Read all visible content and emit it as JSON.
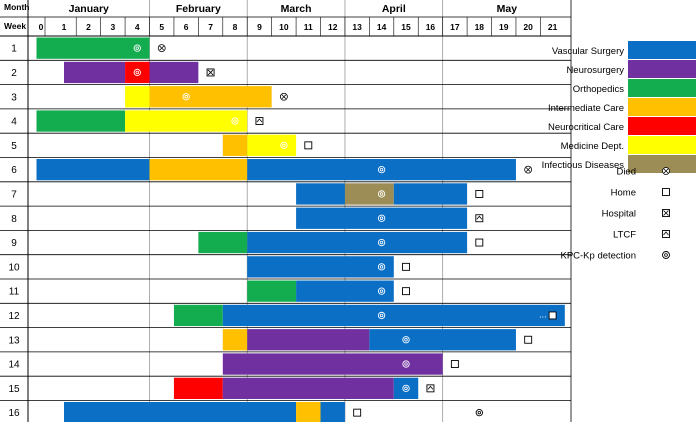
{
  "chart_data": {
    "type": "timeline",
    "header": {
      "month_label": "Month",
      "week_label": "Week"
    },
    "months": [
      {
        "name": "January",
        "first_week": 0,
        "last_week": 4
      },
      {
        "name": "February",
        "first_week": 5,
        "last_week": 8
      },
      {
        "name": "March",
        "first_week": 9,
        "last_week": 12
      },
      {
        "name": "April",
        "first_week": 13,
        "last_week": 16
      },
      {
        "name": "May",
        "first_week": 17,
        "last_week": 21
      }
    ],
    "weeks": [
      "0",
      "1",
      "2",
      "3",
      "4",
      "5",
      "6",
      "7",
      "8",
      "9",
      "10",
      "11",
      "12",
      "13",
      "14",
      "15",
      "16",
      "17",
      "18",
      "19",
      "20",
      "21"
    ],
    "categories": [
      {
        "name": "Vascular Surgery",
        "color": "#0b6fc6"
      },
      {
        "name": "Neurosurgery",
        "color": "#7030a0"
      },
      {
        "name": "Orthopedics",
        "color": "#13ad4f"
      },
      {
        "name": "Intermediate Care",
        "color": "#ffc000"
      },
      {
        "name": "Neurocritical Care",
        "color": "#ff0000"
      },
      {
        "name": "Medicine Dept.",
        "color": "#ffff00"
      },
      {
        "name": "Infectious Diseases",
        "color": "#9c8c55"
      }
    ],
    "outcome_legend": [
      {
        "key": "died",
        "label": "Died",
        "glyph": "⊗"
      },
      {
        "key": "home",
        "label": "Home",
        "glyph": "☐"
      },
      {
        "key": "hospital",
        "label": "Hospital",
        "glyph": "⊠"
      },
      {
        "key": "ltcf",
        "label": "LTCF",
        "glyph": "⌂"
      },
      {
        "key": "kpc",
        "label": "KPC-Kp detection",
        "glyph": "◎"
      }
    ],
    "patients": [
      {
        "id": "1",
        "stays": [
          {
            "ward": "Orthopedics",
            "start": 0,
            "end": 4.5
          }
        ],
        "kpc_week": 4,
        "outcome": {
          "type": "died",
          "week": 5
        }
      },
      {
        "id": "2",
        "stays": [
          {
            "ward": "Neurosurgery",
            "start": 1,
            "end": 3.5
          },
          {
            "ward": "Neurocritical Care",
            "start": 3.5,
            "end": 4.5
          },
          {
            "ward": "Neurosurgery",
            "start": 4.5,
            "end": 6.5
          }
        ],
        "kpc_week": 4,
        "outcome": {
          "type": "hospital",
          "week": 7
        }
      },
      {
        "id": "3",
        "stays": [
          {
            "ward": "Medicine Dept.",
            "start": 3.5,
            "end": 4.5
          },
          {
            "ward": "Intermediate Care",
            "start": 4.5,
            "end": 9.5
          }
        ],
        "kpc_week": 6,
        "outcome": {
          "type": "died",
          "week": 10
        }
      },
      {
        "id": "4",
        "stays": [
          {
            "ward": "Orthopedics",
            "start": 0,
            "end": 3.5
          },
          {
            "ward": "Medicine Dept.",
            "start": 3.5,
            "end": 8.5
          }
        ],
        "kpc_week": 8,
        "outcome": {
          "type": "ltcf",
          "week": 9
        }
      },
      {
        "id": "5",
        "stays": [
          {
            "ward": "Intermediate Care",
            "start": 7.5,
            "end": 8.5
          },
          {
            "ward": "Medicine Dept.",
            "start": 8.5,
            "end": 10.5
          }
        ],
        "kpc_week": 10,
        "outcome": {
          "type": "home",
          "week": 11
        }
      },
      {
        "id": "6",
        "stays": [
          {
            "ward": "Vascular Surgery",
            "start": 0,
            "end": 4.5
          },
          {
            "ward": "Intermediate Care",
            "start": 4.5,
            "end": 8.5
          },
          {
            "ward": "Vascular Surgery",
            "start": 8.5,
            "end": 19.5
          }
        ],
        "kpc_week": 14,
        "outcome": {
          "type": "died",
          "week": 20
        }
      },
      {
        "id": "7",
        "stays": [
          {
            "ward": "Vascular Surgery",
            "start": 10.5,
            "end": 12.5
          },
          {
            "ward": "Infectious Diseases",
            "start": 12.5,
            "end": 14.5
          },
          {
            "ward": "Vascular Surgery",
            "start": 14.5,
            "end": 17.5
          }
        ],
        "kpc_week": 14,
        "outcome": {
          "type": "home",
          "week": 18
        }
      },
      {
        "id": "8",
        "stays": [
          {
            "ward": "Vascular Surgery",
            "start": 10.5,
            "end": 17.5
          }
        ],
        "kpc_week": 14,
        "outcome": {
          "type": "ltcf",
          "week": 18
        }
      },
      {
        "id": "9",
        "stays": [
          {
            "ward": "Orthopedics",
            "start": 6.5,
            "end": 8.5
          },
          {
            "ward": "Vascular Surgery",
            "start": 8.5,
            "end": 17.5
          }
        ],
        "kpc_week": 14,
        "outcome": {
          "type": "home",
          "week": 18
        }
      },
      {
        "id": "10",
        "stays": [
          {
            "ward": "Vascular Surgery",
            "start": 8.5,
            "end": 14.5
          }
        ],
        "kpc_week": 14,
        "outcome": {
          "type": "home",
          "week": 15
        }
      },
      {
        "id": "11",
        "stays": [
          {
            "ward": "Orthopedics",
            "start": 8.5,
            "end": 10.5
          },
          {
            "ward": "Vascular Surgery",
            "start": 10.5,
            "end": 14.5
          }
        ],
        "kpc_week": 14,
        "outcome": {
          "type": "home",
          "week": 15
        }
      },
      {
        "id": "12",
        "stays": [
          {
            "ward": "Orthopedics",
            "start": 5.5,
            "end": 7.5
          },
          {
            "ward": "Vascular Surgery",
            "start": 7.5,
            "end": 21.5
          }
        ],
        "kpc_week": 14,
        "outcome": {
          "type": "home",
          "week": 21,
          "note": "..."
        }
      },
      {
        "id": "13",
        "stays": [
          {
            "ward": "Intermediate Care",
            "start": 7.5,
            "end": 8.5
          },
          {
            "ward": "Neurosurgery",
            "start": 8.5,
            "end": 13.5
          },
          {
            "ward": "Vascular Surgery",
            "start": 13.5,
            "end": 19.5
          }
        ],
        "kpc_week": 15,
        "outcome": {
          "type": "home",
          "week": 20
        }
      },
      {
        "id": "14",
        "stays": [
          {
            "ward": "Neurosurgery",
            "start": 7.5,
            "end": 16.5
          }
        ],
        "kpc_week": 15,
        "outcome": {
          "type": "home",
          "week": 17
        }
      },
      {
        "id": "15",
        "stays": [
          {
            "ward": "Neurocritical Care",
            "start": 5.5,
            "end": 7.5
          },
          {
            "ward": "Neurosurgery",
            "start": 7.5,
            "end": 14.5
          },
          {
            "ward": "Vascular Surgery",
            "start": 14.5,
            "end": 15.5
          }
        ],
        "kpc_week": 15,
        "outcome": {
          "type": "ltcf",
          "week": 16
        }
      },
      {
        "id": "16",
        "stays": [
          {
            "ward": "Vascular Surgery",
            "start": 1,
            "end": 10.5
          },
          {
            "ward": "Intermediate Care",
            "start": 10.5,
            "end": 11.5
          },
          {
            "ward": "Vascular Surgery",
            "start": 11.5,
            "end": 12.5
          }
        ],
        "kpc_week": 18,
        "outcome": {
          "type": "home",
          "week": 13
        }
      }
    ]
  }
}
